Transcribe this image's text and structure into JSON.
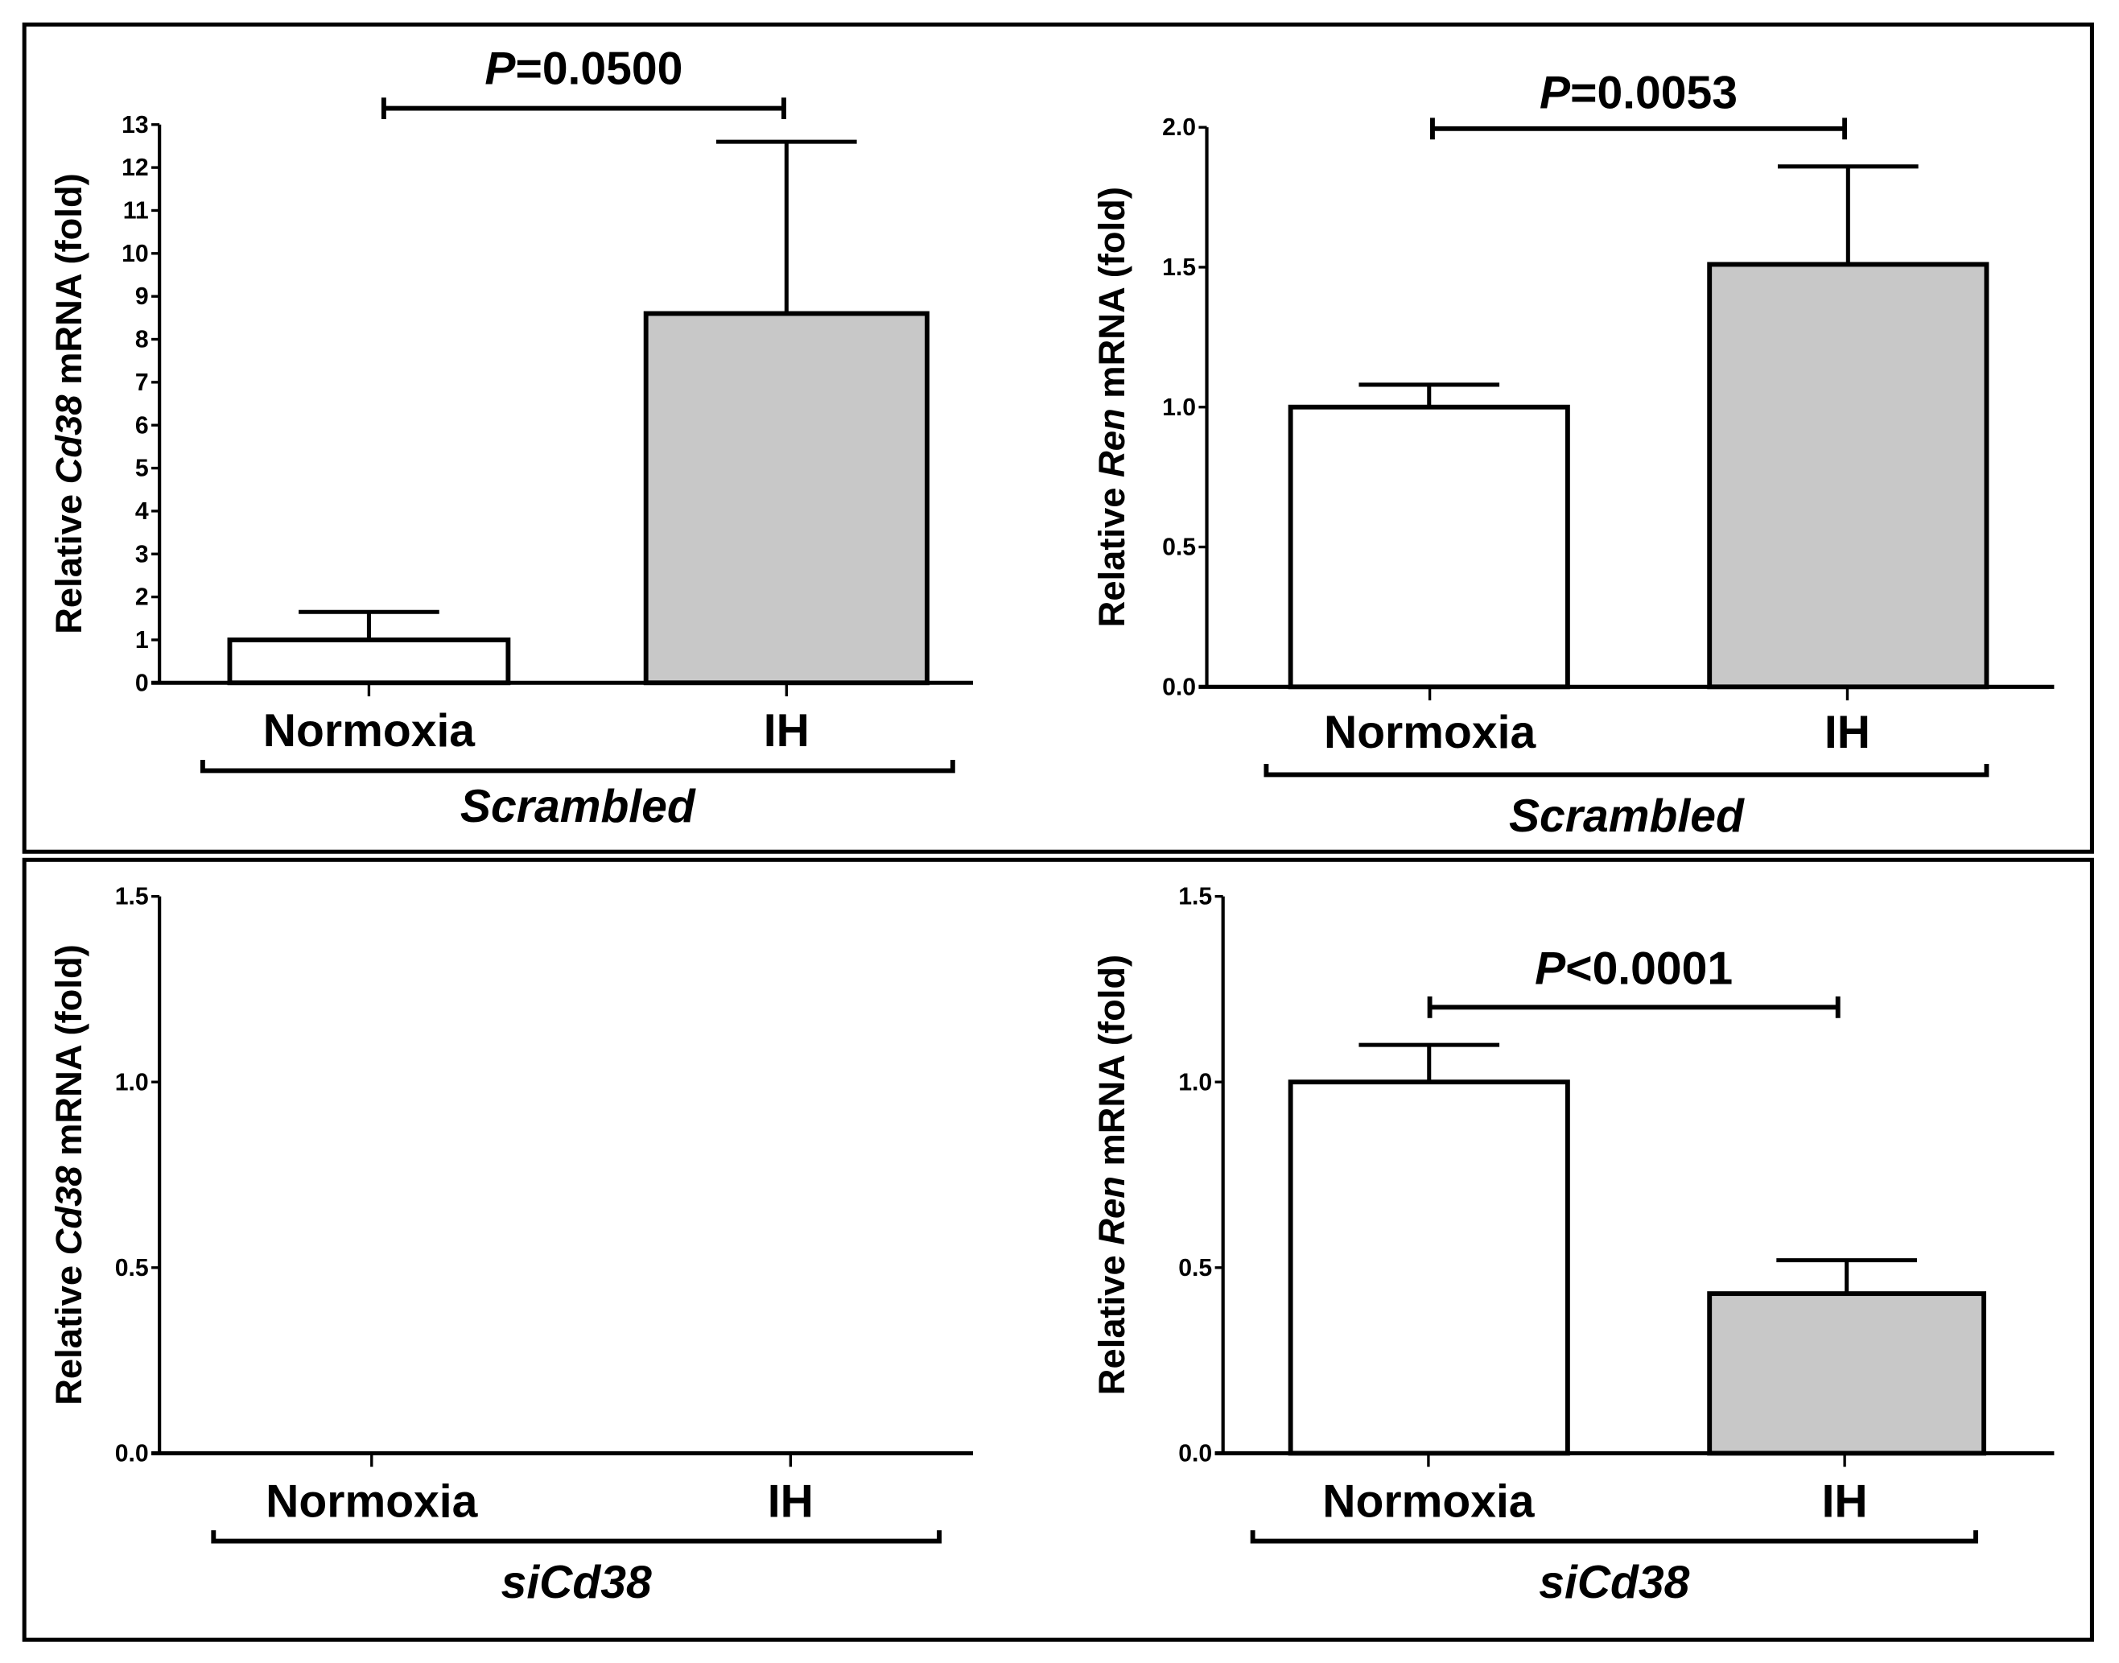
{
  "chart_data": [
    {
      "type": "bar",
      "group_label": "Scrambled",
      "ylabel": {
        "prefix": "Relative ",
        "gene": "Cd38",
        "suffix": " mRNA (fold)"
      },
      "ylim": [
        0,
        13
      ],
      "yticks": [
        "0",
        "1",
        "2",
        "3",
        "4",
        "5",
        "6",
        "7",
        "8",
        "9",
        "10",
        "11",
        "12",
        "13"
      ],
      "categories": [
        "Normoxia",
        "IH"
      ],
      "values": [
        1.0,
        8.6
      ],
      "error_upper": [
        1.65,
        12.6
      ],
      "significance": {
        "p_letter": "P",
        "p_text": "=0.0500"
      }
    },
    {
      "type": "bar",
      "group_label": "Scrambled",
      "ylabel": {
        "prefix": "Relative ",
        "gene": "Ren",
        "suffix": " mRNA (fold)"
      },
      "ylim": [
        0,
        2.0
      ],
      "yticks": [
        "0.0",
        "0.5",
        "1.0",
        "1.5",
        "2.0"
      ],
      "categories": [
        "Normoxia",
        "IH"
      ],
      "values": [
        1.0,
        1.51
      ],
      "error_upper": [
        1.08,
        1.86
      ],
      "significance": {
        "p_letter": "P",
        "p_text": "=0.0053"
      }
    },
    {
      "type": "bar",
      "group_label": "siCd38",
      "ylabel": {
        "prefix": "Relative ",
        "gene": "Cd38",
        "suffix": " mRNA (fold)"
      },
      "ylim": [
        0,
        1.5
      ],
      "yticks": [
        "0.0",
        "0.5",
        "1.0",
        "1.5"
      ],
      "categories": [
        "Normoxia",
        "IH"
      ],
      "values": [
        null,
        null
      ],
      "error_upper": [
        null,
        null
      ],
      "significance": null
    },
    {
      "type": "bar",
      "group_label": "siCd38",
      "ylabel": {
        "prefix": "Relative ",
        "gene": "Ren",
        "suffix": " mRNA (fold)"
      },
      "ylim": [
        0,
        1.5
      ],
      "yticks": [
        "0.0",
        "0.5",
        "1.0",
        "1.5"
      ],
      "categories": [
        "Normoxia",
        "IH"
      ],
      "values": [
        1.0,
        0.43
      ],
      "error_upper": [
        1.1,
        0.52
      ],
      "significance": {
        "p_letter": "P",
        "p_text": "<0.0001"
      }
    }
  ],
  "colors": {
    "normoxia_fill": "#ffffff",
    "ih_fill": "#c8c8c8",
    "stroke": "#000000"
  }
}
